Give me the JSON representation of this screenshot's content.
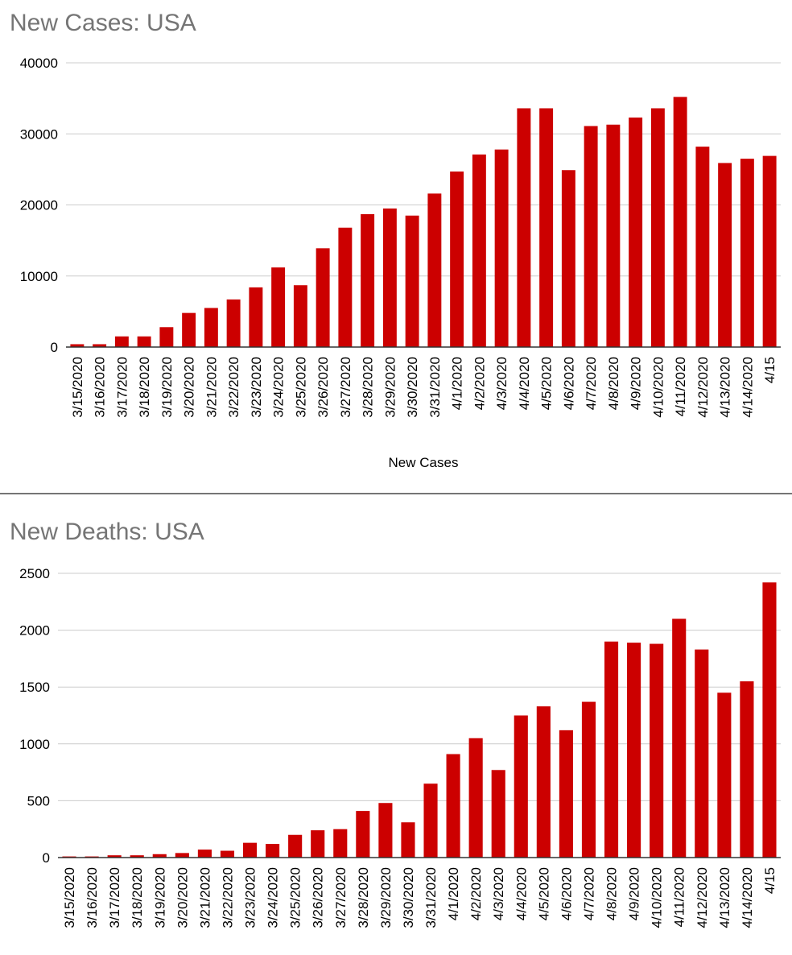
{
  "colors": {
    "bar": "#cc0000",
    "title": "#757575",
    "grid": "#cccccc"
  },
  "chart_data": [
    {
      "type": "bar",
      "title": "New Cases: USA",
      "xlabel": "New Cases",
      "ylabel": "",
      "ylim": [
        0,
        40000
      ],
      "yticks": [
        0,
        10000,
        20000,
        30000,
        40000
      ],
      "grid": true,
      "legend": "none",
      "categories": [
        "3/15/2020",
        "3/16/2020",
        "3/17/2020",
        "3/18/2020",
        "3/19/2020",
        "3/20/2020",
        "3/21/2020",
        "3/22/2020",
        "3/23/2020",
        "3/24/2020",
        "3/25/2020",
        "3/26/2020",
        "3/27/2020",
        "3/28/2020",
        "3/29/2020",
        "3/30/2020",
        "3/31/2020",
        "4/1/2020",
        "4/2/2020",
        "4/3/2020",
        "4/4/2020",
        "4/5/2020",
        "4/6/2020",
        "4/7/2020",
        "4/8/2020",
        "4/9/2020",
        "4/10/2020",
        "4/11/2020",
        "4/12/2020",
        "4/13/2020",
        "4/14/2020",
        "4/15"
      ],
      "values": [
        400,
        400,
        1500,
        1500,
        2800,
        4800,
        5500,
        6700,
        8400,
        11200,
        8700,
        13900,
        16800,
        18700,
        19500,
        18500,
        21600,
        24700,
        27100,
        27800,
        33600,
        33600,
        24900,
        31100,
        31300,
        32300,
        33600,
        35200,
        28200,
        25900,
        26500,
        26900
      ]
    },
    {
      "type": "bar",
      "title": "New Deaths: USA",
      "xlabel": "",
      "ylabel": "",
      "ylim": [
        0,
        2500
      ],
      "yticks": [
        0,
        500,
        1000,
        1500,
        2000,
        2500
      ],
      "grid": true,
      "legend": "none",
      "categories": [
        "3/15/2020",
        "3/16/2020",
        "3/17/2020",
        "3/18/2020",
        "3/19/2020",
        "3/20/2020",
        "3/21/2020",
        "3/22/2020",
        "3/23/2020",
        "3/24/2020",
        "3/25/2020",
        "3/26/2020",
        "3/27/2020",
        "3/28/2020",
        "3/29/2020",
        "3/30/2020",
        "3/31/2020",
        "4/1/2020",
        "4/2/2020",
        "4/3/2020",
        "4/4/2020",
        "4/5/2020",
        "4/6/2020",
        "4/7/2020",
        "4/8/2020",
        "4/9/2020",
        "4/10/2020",
        "4/11/2020",
        "4/12/2020",
        "4/13/2020",
        "4/14/2020",
        "4/15"
      ],
      "values": [
        10,
        10,
        20,
        20,
        30,
        40,
        70,
        60,
        130,
        120,
        200,
        240,
        250,
        410,
        480,
        310,
        650,
        910,
        1050,
        770,
        1250,
        1330,
        1120,
        1370,
        1900,
        1890,
        1880,
        2100,
        1830,
        1450,
        1550,
        2420
      ]
    }
  ]
}
